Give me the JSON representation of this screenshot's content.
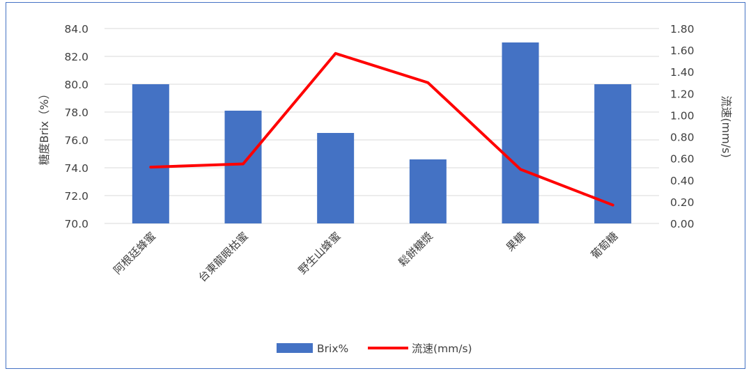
{
  "chart_data": {
    "type": "bar",
    "categories": [
      "阿根廷蜂蜜",
      "台東龍眼枯蜜",
      "野生山蜂蜜",
      "鬆餅糖漿",
      "果糖",
      "葡萄糖"
    ],
    "series": [
      {
        "name": "Brix%",
        "type": "bar",
        "axis": "left",
        "color": "#4472c4",
        "values": [
          80.0,
          78.1,
          76.5,
          74.6,
          83.0,
          80.0
        ]
      },
      {
        "name": "流速(mm/s)",
        "type": "line",
        "axis": "right",
        "color": "#ff0000",
        "values": [
          0.52,
          0.55,
          1.57,
          1.3,
          0.5,
          0.17
        ]
      }
    ],
    "ylabel": "糖度Brix（%）",
    "y2label": "流速(mm/s)",
    "ylim": [
      70,
      84
    ],
    "y2lim": [
      0,
      1.8
    ],
    "yticks": [
      "70.0",
      "72.0",
      "74.0",
      "76.0",
      "78.0",
      "80.0",
      "82.0",
      "84.0"
    ],
    "y2ticks": [
      "0.00",
      "0.20",
      "0.40",
      "0.60",
      "0.80",
      "1.00",
      "1.20",
      "1.40",
      "1.60",
      "1.80"
    ],
    "grid": true,
    "legend_position": "bottom"
  }
}
